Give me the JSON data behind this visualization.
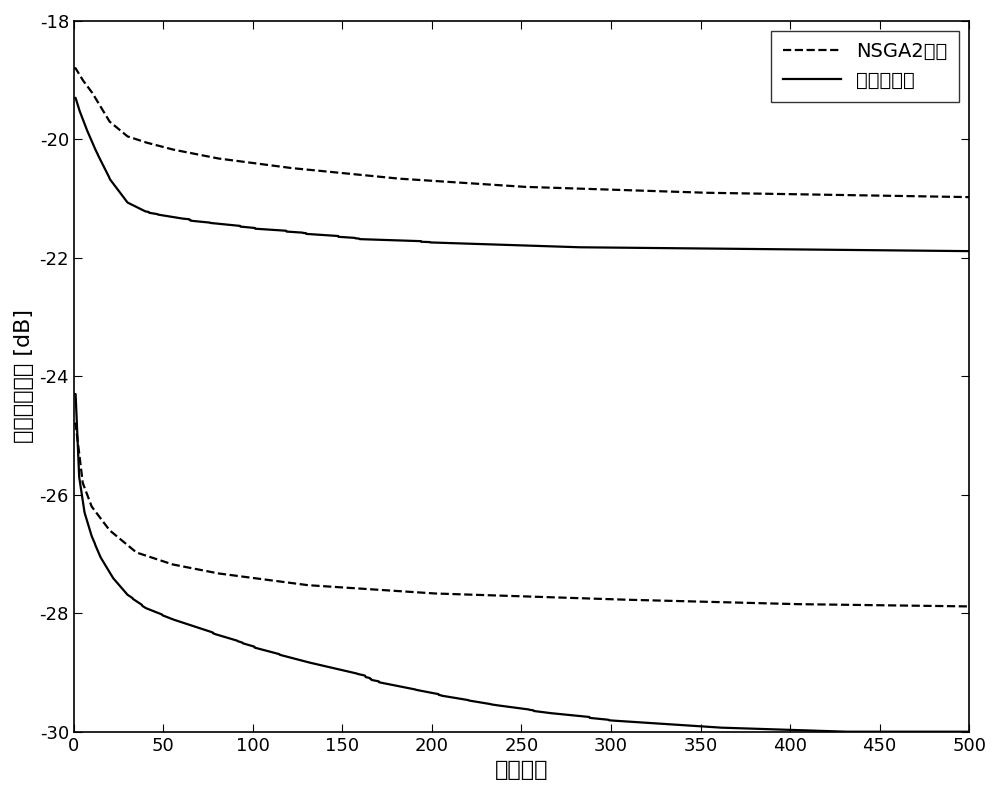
{
  "xlabel": "迭代次数",
  "ylabel": "峰値旁瓣水平 [dB]",
  "legend_nsga2": "NSGA2算法",
  "legend_invention": "本发明方法",
  "xlim": [
    0,
    500
  ],
  "ylim": [
    -30,
    -18
  ],
  "yticks": [
    -30,
    -28,
    -26,
    -24,
    -22,
    -20,
    -18
  ],
  "xticks": [
    0,
    50,
    100,
    150,
    200,
    250,
    300,
    350,
    400,
    450,
    500
  ],
  "background_color": "#ffffff",
  "line_color": "#000000"
}
